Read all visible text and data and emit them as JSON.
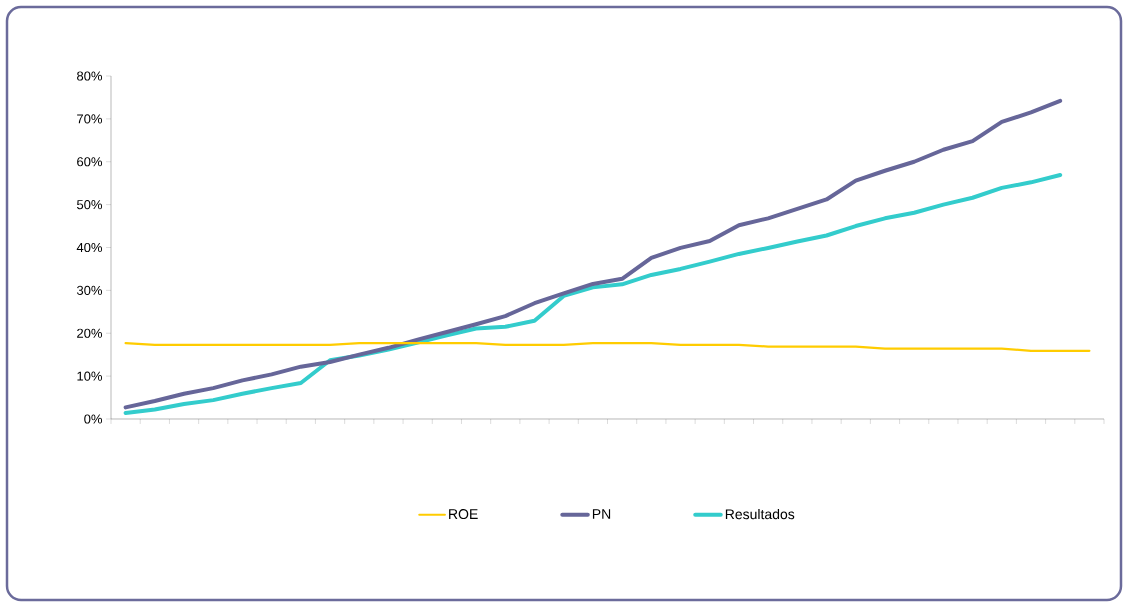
{
  "chart_data": {
    "type": "line",
    "categories": [
      null,
      null,
      null,
      null,
      null,
      null,
      null,
      null,
      null,
      null,
      null,
      null,
      null,
      null,
      null,
      null,
      null,
      null,
      null,
      null,
      null,
      null,
      null,
      null,
      null,
      null,
      null,
      null,
      null,
      null,
      null,
      null,
      null,
      null
    ],
    "series": [
      {
        "name": "ROE",
        "color": "#ffcc00",
        "values": [
          17.7,
          17.3,
          17.3,
          17.3,
          17.3,
          17.3,
          17.3,
          17.3,
          17.7,
          17.7,
          17.7,
          17.7,
          17.7,
          17.3,
          17.3,
          17.3,
          17.7,
          17.7,
          17.7,
          17.3,
          17.3,
          17.3,
          16.9,
          16.9,
          16.9,
          16.9,
          16.4,
          16.4,
          16.4,
          16.4,
          16.4,
          15.9,
          15.9,
          15.9
        ]
      },
      {
        "name": "PN",
        "color": "#666699",
        "values": [
          2.7,
          4.2,
          5.9,
          7.2,
          9.0,
          10.4,
          12.2,
          13.3,
          15.0,
          16.6,
          18.5,
          20.3,
          22.1,
          24.0,
          27.0,
          29.3,
          31.5,
          32.7,
          37.6,
          39.9,
          41.5,
          45.2,
          46.8,
          49.0,
          51.2,
          55.6,
          57.9,
          60.0,
          62.8,
          64.8,
          69.3,
          71.5,
          74.2,
          null
        ]
      },
      {
        "name": "Resultados",
        "color": "#33cccc",
        "values": [
          1.4,
          2.2,
          3.5,
          4.4,
          5.9,
          7.2,
          8.4,
          13.7,
          14.8,
          16.2,
          17.8,
          19.5,
          21.1,
          21.5,
          22.9,
          28.7,
          30.7,
          31.4,
          33.6,
          35.0,
          36.7,
          38.5,
          39.9,
          41.4,
          42.8,
          45.0,
          46.8,
          48.1,
          50.0,
          51.6,
          53.9,
          55.2,
          56.9,
          null
        ]
      }
    ],
    "ylim": [
      0,
      80
    ],
    "yticks": [
      {
        "value": 0,
        "label": "0%"
      },
      {
        "value": 10,
        "label": "10%"
      },
      {
        "value": 20,
        "label": "20%"
      },
      {
        "value": 30,
        "label": "30%"
      },
      {
        "value": 40,
        "label": "40%"
      },
      {
        "value": 50,
        "label": "50%"
      },
      {
        "value": 60,
        "label": "60%"
      },
      {
        "value": 70,
        "label": "70%"
      },
      {
        "value": 80,
        "label": "80%"
      }
    ],
    "legend": "bottom",
    "marker": "none",
    "line_style": "solid"
  }
}
